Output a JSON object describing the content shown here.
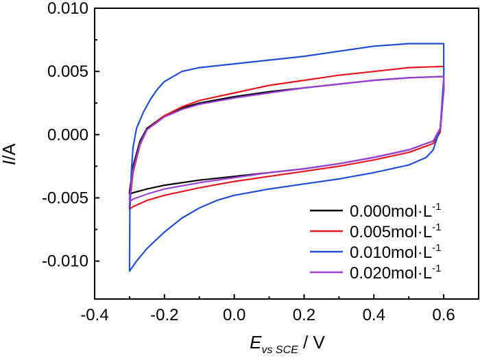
{
  "chart_data": {
    "type": "line",
    "title": "",
    "xlabel": {
      "main": "E",
      "sub": "vs SCE",
      "rest": " / V"
    },
    "ylabel": {
      "main": "I",
      "rest": "/A"
    },
    "xlim": [
      -0.4,
      0.7
    ],
    "ylim": [
      -0.013,
      0.01
    ],
    "xticks": [
      -0.4,
      -0.2,
      0.0,
      0.2,
      0.4,
      0.6
    ],
    "xtick_labels": [
      "-0.4",
      "-0.2",
      "0.0",
      "0.2",
      "0.4",
      "0.6"
    ],
    "yticks": [
      -0.01,
      -0.005,
      0.0,
      0.005,
      0.01
    ],
    "ytick_labels": [
      "-0.010",
      "-0.005",
      "0.000",
      "0.005",
      "0.010"
    ],
    "legend_position": "bottom-right",
    "legend_unit": "mol·L",
    "legend_exponent": "-1",
    "series": [
      {
        "name": "0.000",
        "color": "#000000",
        "upper": [
          [
            -0.3,
            -0.0045
          ],
          [
            -0.29,
            -0.0025
          ],
          [
            -0.27,
            -0.0005
          ],
          [
            -0.25,
            0.0005
          ],
          [
            -0.2,
            0.0015
          ],
          [
            -0.15,
            0.0021
          ],
          [
            -0.1,
            0.0025
          ],
          [
            0.0,
            0.003
          ],
          [
            0.1,
            0.0034
          ],
          [
            0.2,
            0.0037
          ],
          [
            0.3,
            0.004
          ],
          [
            0.4,
            0.0043
          ],
          [
            0.5,
            0.0045
          ],
          [
            0.6,
            0.0046
          ]
        ],
        "lower": [
          [
            0.6,
            0.0046
          ],
          [
            0.6,
            0.0035
          ],
          [
            0.59,
            0.0005
          ],
          [
            0.57,
            -0.0005
          ],
          [
            0.5,
            -0.0012
          ],
          [
            0.4,
            -0.0018
          ],
          [
            0.3,
            -0.0023
          ],
          [
            0.2,
            -0.0027
          ],
          [
            0.1,
            -0.003
          ],
          [
            0.0,
            -0.0033
          ],
          [
            -0.1,
            -0.0036
          ],
          [
            -0.2,
            -0.004
          ],
          [
            -0.25,
            -0.0043
          ],
          [
            -0.29,
            -0.0046
          ],
          [
            -0.3,
            -0.0047
          ],
          [
            -0.3,
            -0.0045
          ]
        ]
      },
      {
        "name": "0.005",
        "color": "#e8161e",
        "upper": [
          [
            -0.3,
            -0.0055
          ],
          [
            -0.29,
            -0.003
          ],
          [
            -0.27,
            -0.0008
          ],
          [
            -0.25,
            0.0004
          ],
          [
            -0.2,
            0.0015
          ],
          [
            -0.15,
            0.0022
          ],
          [
            -0.1,
            0.0027
          ],
          [
            0.0,
            0.0033
          ],
          [
            0.1,
            0.0039
          ],
          [
            0.2,
            0.0043
          ],
          [
            0.3,
            0.0047
          ],
          [
            0.4,
            0.005
          ],
          [
            0.5,
            0.0053
          ],
          [
            0.6,
            0.0054
          ]
        ],
        "lower": [
          [
            0.6,
            0.0054
          ],
          [
            0.6,
            0.0035
          ],
          [
            0.59,
            0.0002
          ],
          [
            0.57,
            -0.0007
          ],
          [
            0.5,
            -0.0014
          ],
          [
            0.4,
            -0.002
          ],
          [
            0.3,
            -0.0025
          ],
          [
            0.2,
            -0.0029
          ],
          [
            0.1,
            -0.0033
          ],
          [
            0.0,
            -0.0037
          ],
          [
            -0.1,
            -0.0042
          ],
          [
            -0.2,
            -0.0048
          ],
          [
            -0.25,
            -0.0052
          ],
          [
            -0.29,
            -0.0057
          ],
          [
            -0.3,
            -0.0059
          ],
          [
            -0.3,
            -0.0055
          ]
        ]
      },
      {
        "name": "0.010",
        "color": "#1e4fd6",
        "upper": [
          [
            -0.3,
            -0.0105
          ],
          [
            -0.299,
            -0.006
          ],
          [
            -0.295,
            -0.003
          ],
          [
            -0.29,
            -0.001
          ],
          [
            -0.28,
            0.0005
          ],
          [
            -0.26,
            0.0018
          ],
          [
            -0.24,
            0.0028
          ],
          [
            -0.22,
            0.0036
          ],
          [
            -0.2,
            0.0042
          ],
          [
            -0.15,
            0.005
          ],
          [
            -0.1,
            0.0053
          ],
          [
            0.0,
            0.0056
          ],
          [
            0.1,
            0.0059
          ],
          [
            0.2,
            0.0062
          ],
          [
            0.3,
            0.0066
          ],
          [
            0.4,
            0.007
          ],
          [
            0.5,
            0.0072
          ],
          [
            0.6,
            0.0072
          ]
        ],
        "lower": [
          [
            0.6,
            0.0072
          ],
          [
            0.6,
            0.0045
          ],
          [
            0.59,
            0.0005
          ],
          [
            0.57,
            -0.0012
          ],
          [
            0.55,
            -0.0018
          ],
          [
            0.5,
            -0.0024
          ],
          [
            0.4,
            -0.003
          ],
          [
            0.3,
            -0.0035
          ],
          [
            0.2,
            -0.0039
          ],
          [
            0.1,
            -0.0043
          ],
          [
            0.0,
            -0.0048
          ],
          [
            -0.05,
            -0.0052
          ],
          [
            -0.1,
            -0.0058
          ],
          [
            -0.15,
            -0.0066
          ],
          [
            -0.2,
            -0.0077
          ],
          [
            -0.25,
            -0.009
          ],
          [
            -0.28,
            -0.01
          ],
          [
            -0.3,
            -0.0108
          ],
          [
            -0.3,
            -0.0105
          ]
        ]
      },
      {
        "name": "0.020",
        "color": "#9b40d8",
        "upper": [
          [
            -0.3,
            -0.005
          ],
          [
            -0.29,
            -0.0028
          ],
          [
            -0.27,
            -0.0007
          ],
          [
            -0.25,
            0.0004
          ],
          [
            -0.2,
            0.0014
          ],
          [
            -0.15,
            0.002
          ],
          [
            -0.1,
            0.0024
          ],
          [
            0.0,
            0.0029
          ],
          [
            0.1,
            0.0033
          ],
          [
            0.2,
            0.0037
          ],
          [
            0.3,
            0.004
          ],
          [
            0.4,
            0.0043
          ],
          [
            0.5,
            0.0045
          ],
          [
            0.6,
            0.0046
          ]
        ],
        "lower": [
          [
            0.6,
            0.0046
          ],
          [
            0.6,
            0.0035
          ],
          [
            0.59,
            0.0005
          ],
          [
            0.57,
            -0.0005
          ],
          [
            0.5,
            -0.0012
          ],
          [
            0.4,
            -0.0018
          ],
          [
            0.3,
            -0.0023
          ],
          [
            0.2,
            -0.0027
          ],
          [
            0.1,
            -0.003
          ],
          [
            0.0,
            -0.0034
          ],
          [
            -0.1,
            -0.0038
          ],
          [
            -0.2,
            -0.0043
          ],
          [
            -0.25,
            -0.0047
          ],
          [
            -0.29,
            -0.0051
          ],
          [
            -0.3,
            -0.0053
          ],
          [
            -0.3,
            -0.005
          ]
        ]
      }
    ]
  }
}
